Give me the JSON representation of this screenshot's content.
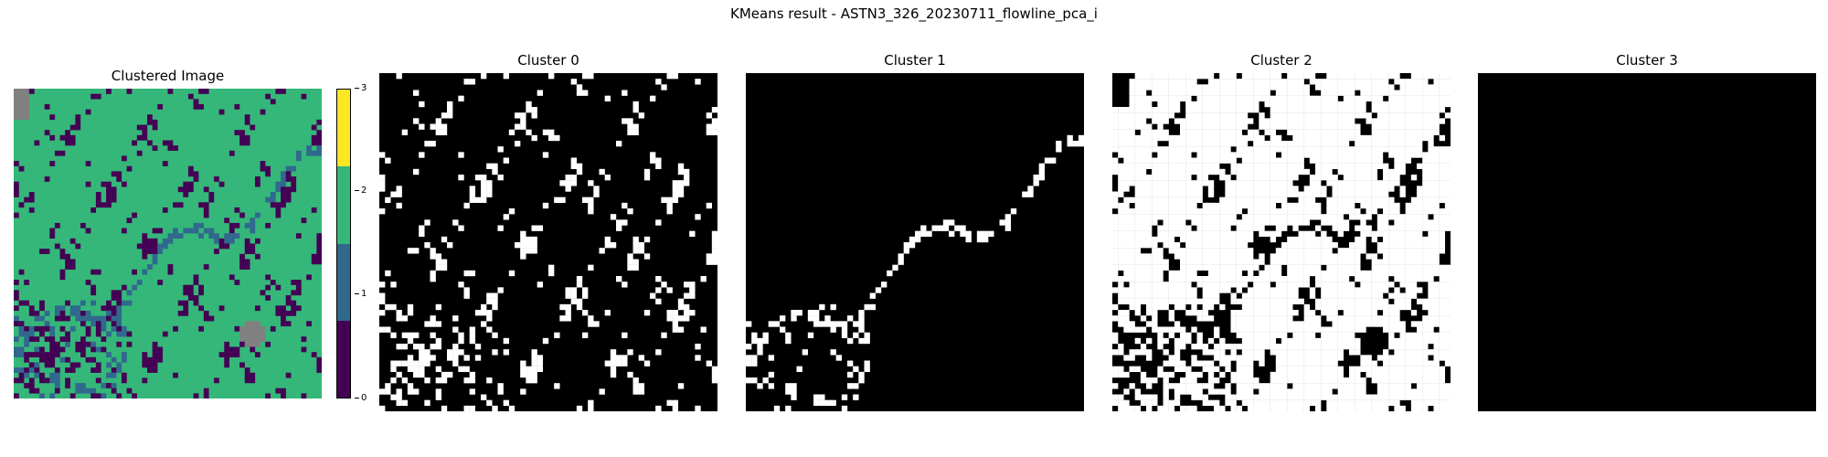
{
  "figure": {
    "suptitle": "KMeans result - ASTN3_326_20230711_flowline_pca_i"
  },
  "chart_data": [
    {
      "type": "heatmap",
      "title": "Clustered Image",
      "clusters": [
        0,
        1,
        2,
        3
      ],
      "colormap": [
        "#440154",
        "#31688e",
        "#35b779",
        "#fde725"
      ],
      "nodata_color": "#808080",
      "colorbar": {
        "ticks": [
          "0",
          "1",
          "2",
          "3"
        ],
        "range": [
          0,
          3
        ]
      },
      "approx_fraction": {
        "0": 0.2,
        "1": 0.04,
        "2": 0.74,
        "3": 0.0
      }
    },
    {
      "type": "heatmap",
      "title": "Cluster 0",
      "mask_of_cluster": 0,
      "foreground": "#ffffff",
      "background": "#000000"
    },
    {
      "type": "heatmap",
      "title": "Cluster 1",
      "mask_of_cluster": 1,
      "foreground": "#ffffff",
      "background": "#000000"
    },
    {
      "type": "heatmap",
      "title": "Cluster 2",
      "mask_of_cluster": 2,
      "foreground": "#ffffff",
      "background": "#000000"
    },
    {
      "type": "heatmap",
      "title": "Cluster 3",
      "mask_of_cluster": 3,
      "foreground": "#ffffff",
      "background": "#000000"
    }
  ]
}
